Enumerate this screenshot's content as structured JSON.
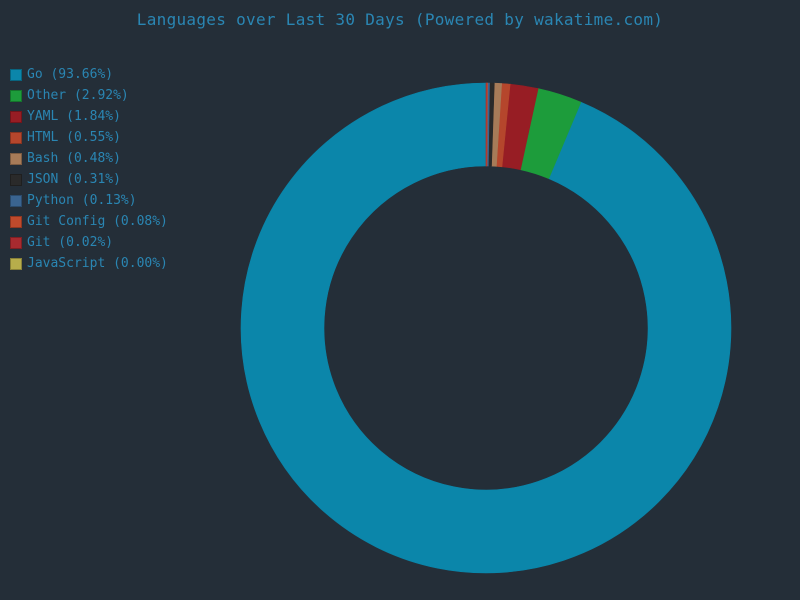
{
  "chart_data": {
    "type": "pie",
    "title": "Languages over Last 30 Days (Powered by wakatime.com)",
    "legend_position": "left",
    "hole": true,
    "slices": [
      {
        "label": "Go (93.66%)",
        "name": "Go",
        "value": 93.66,
        "color": "#0b86aa"
      },
      {
        "label": "Other (2.92%)",
        "name": "Other",
        "value": 2.92,
        "color": "#1d9c3b"
      },
      {
        "label": "YAML (1.84%)",
        "name": "YAML",
        "value": 1.84,
        "color": "#971d24"
      },
      {
        "label": "HTML (0.55%)",
        "name": "HTML",
        "value": 0.55,
        "color": "#b5462c"
      },
      {
        "label": "Bash (0.48%)",
        "name": "Bash",
        "value": 0.48,
        "color": "#a77b58"
      },
      {
        "label": "JSON (0.31%)",
        "name": "JSON",
        "value": 0.31,
        "color": "#2a2a2a"
      },
      {
        "label": "Python (0.13%)",
        "name": "Python",
        "value": 0.13,
        "color": "#3a6490"
      },
      {
        "label": "Git Config (0.08%)",
        "name": "Git Config",
        "value": 0.08,
        "color": "#c04a2c"
      },
      {
        "label": "Git (0.02%)",
        "name": "Git",
        "value": 0.02,
        "color": "#a82a2f"
      },
      {
        "label": "JavaScript (0.00%)",
        "name": "JavaScript",
        "value": 0.0,
        "color": "#b7ad4b"
      }
    ]
  }
}
